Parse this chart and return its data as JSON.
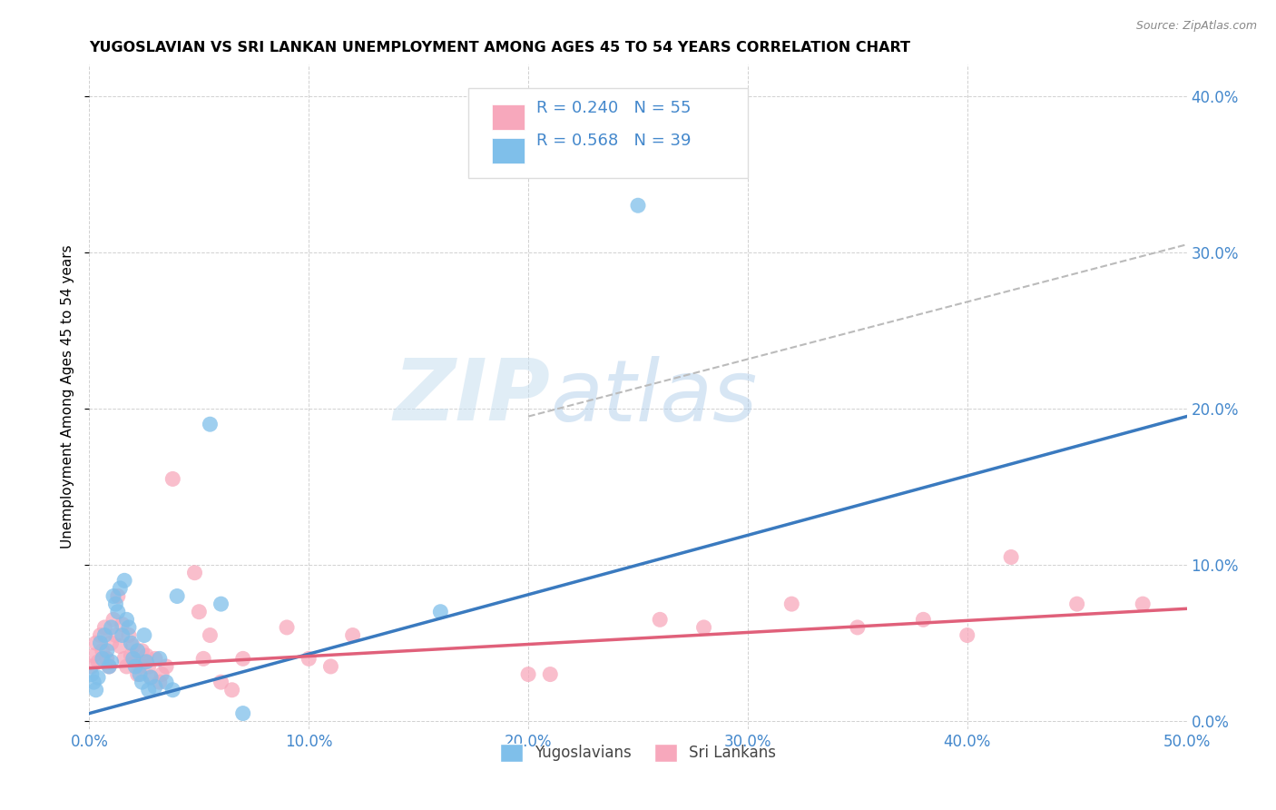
{
  "title": "YUGOSLAVIAN VS SRI LANKAN UNEMPLOYMENT AMONG AGES 45 TO 54 YEARS CORRELATION CHART",
  "source": "Source: ZipAtlas.com",
  "ylabel": "Unemployment Among Ages 45 to 54 years",
  "color_yugo": "#7fbfea",
  "color_sri": "#f7a8bc",
  "color_yugo_line": "#3a7abf",
  "color_sri_line": "#e0607a",
  "background_color": "#ffffff",
  "watermark_zip": "ZIP",
  "watermark_atlas": "atlas",
  "xlim": [
    0.0,
    0.5
  ],
  "ylim": [
    -0.005,
    0.42
  ],
  "xticks": [
    0.0,
    0.1,
    0.2,
    0.3,
    0.4,
    0.5
  ],
  "yticks": [
    0.0,
    0.1,
    0.2,
    0.3,
    0.4
  ],
  "legend_r_n": [
    {
      "R": "0.568",
      "N": "39",
      "color": "#7fbfea"
    },
    {
      "R": "0.240",
      "N": "55",
      "color": "#f7a8bc"
    }
  ],
  "yugo_line_x": [
    0.0,
    0.5
  ],
  "yugo_line_y": [
    0.005,
    0.195
  ],
  "sri_line_x": [
    0.0,
    0.5
  ],
  "sri_line_y": [
    0.034,
    0.072
  ],
  "dashed_line_x": [
    0.2,
    0.5
  ],
  "dashed_line_y": [
    0.195,
    0.305
  ],
  "yugo_scatter": [
    [
      0.001,
      0.03
    ],
    [
      0.002,
      0.025
    ],
    [
      0.003,
      0.02
    ],
    [
      0.004,
      0.028
    ],
    [
      0.005,
      0.05
    ],
    [
      0.006,
      0.04
    ],
    [
      0.007,
      0.055
    ],
    [
      0.008,
      0.045
    ],
    [
      0.009,
      0.035
    ],
    [
      0.01,
      0.06
    ],
    [
      0.01,
      0.038
    ],
    [
      0.011,
      0.08
    ],
    [
      0.012,
      0.075
    ],
    [
      0.013,
      0.07
    ],
    [
      0.014,
      0.085
    ],
    [
      0.015,
      0.055
    ],
    [
      0.016,
      0.09
    ],
    [
      0.017,
      0.065
    ],
    [
      0.018,
      0.06
    ],
    [
      0.019,
      0.05
    ],
    [
      0.02,
      0.04
    ],
    [
      0.021,
      0.035
    ],
    [
      0.022,
      0.045
    ],
    [
      0.023,
      0.03
    ],
    [
      0.024,
      0.025
    ],
    [
      0.025,
      0.055
    ],
    [
      0.026,
      0.038
    ],
    [
      0.027,
      0.02
    ],
    [
      0.028,
      0.028
    ],
    [
      0.03,
      0.022
    ],
    [
      0.032,
      0.04
    ],
    [
      0.035,
      0.025
    ],
    [
      0.038,
      0.02
    ],
    [
      0.04,
      0.08
    ],
    [
      0.06,
      0.075
    ],
    [
      0.16,
      0.07
    ],
    [
      0.055,
      0.19
    ],
    [
      0.25,
      0.33
    ],
    [
      0.07,
      0.005
    ]
  ],
  "sri_scatter": [
    [
      0.001,
      0.035
    ],
    [
      0.002,
      0.042
    ],
    [
      0.003,
      0.05
    ],
    [
      0.004,
      0.038
    ],
    [
      0.005,
      0.055
    ],
    [
      0.006,
      0.045
    ],
    [
      0.007,
      0.06
    ],
    [
      0.008,
      0.04
    ],
    [
      0.009,
      0.035
    ],
    [
      0.01,
      0.05
    ],
    [
      0.011,
      0.065
    ],
    [
      0.012,
      0.055
    ],
    [
      0.013,
      0.08
    ],
    [
      0.014,
      0.048
    ],
    [
      0.015,
      0.062
    ],
    [
      0.016,
      0.04
    ],
    [
      0.017,
      0.035
    ],
    [
      0.018,
      0.055
    ],
    [
      0.019,
      0.042
    ],
    [
      0.02,
      0.048
    ],
    [
      0.021,
      0.038
    ],
    [
      0.022,
      0.03
    ],
    [
      0.023,
      0.035
    ],
    [
      0.024,
      0.045
    ],
    [
      0.025,
      0.038
    ],
    [
      0.026,
      0.042
    ],
    [
      0.027,
      0.035
    ],
    [
      0.028,
      0.028
    ],
    [
      0.03,
      0.04
    ],
    [
      0.032,
      0.025
    ],
    [
      0.033,
      0.03
    ],
    [
      0.035,
      0.035
    ],
    [
      0.038,
      0.155
    ],
    [
      0.048,
      0.095
    ],
    [
      0.05,
      0.07
    ],
    [
      0.052,
      0.04
    ],
    [
      0.055,
      0.055
    ],
    [
      0.06,
      0.025
    ],
    [
      0.065,
      0.02
    ],
    [
      0.07,
      0.04
    ],
    [
      0.09,
      0.06
    ],
    [
      0.1,
      0.04
    ],
    [
      0.11,
      0.035
    ],
    [
      0.12,
      0.055
    ],
    [
      0.2,
      0.03
    ],
    [
      0.21,
      0.03
    ],
    [
      0.26,
      0.065
    ],
    [
      0.28,
      0.06
    ],
    [
      0.32,
      0.075
    ],
    [
      0.35,
      0.06
    ],
    [
      0.38,
      0.065
    ],
    [
      0.4,
      0.055
    ],
    [
      0.42,
      0.105
    ],
    [
      0.45,
      0.075
    ],
    [
      0.48,
      0.075
    ]
  ]
}
